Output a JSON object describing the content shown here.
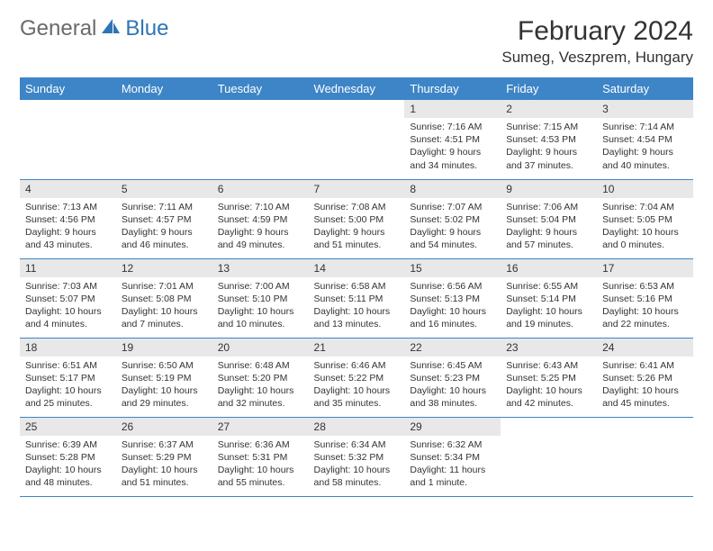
{
  "brand": {
    "part1": "General",
    "part2": "Blue"
  },
  "title": "February 2024",
  "location": "Sumeg, Veszprem, Hungary",
  "colors": {
    "header_bg": "#3d85c6",
    "header_text": "#ffffff",
    "daynum_bg": "#e8e8e8",
    "border": "#3d85c6",
    "logo_gray": "#6a6a6a",
    "logo_blue": "#2e75b6",
    "page_bg": "#ffffff"
  },
  "weekdays": [
    "Sunday",
    "Monday",
    "Tuesday",
    "Wednesday",
    "Thursday",
    "Friday",
    "Saturday"
  ],
  "weeks": [
    [
      null,
      null,
      null,
      null,
      {
        "n": "1",
        "sunrise": "Sunrise: 7:16 AM",
        "sunset": "Sunset: 4:51 PM",
        "daylight": "Daylight: 9 hours and 34 minutes."
      },
      {
        "n": "2",
        "sunrise": "Sunrise: 7:15 AM",
        "sunset": "Sunset: 4:53 PM",
        "daylight": "Daylight: 9 hours and 37 minutes."
      },
      {
        "n": "3",
        "sunrise": "Sunrise: 7:14 AM",
        "sunset": "Sunset: 4:54 PM",
        "daylight": "Daylight: 9 hours and 40 minutes."
      }
    ],
    [
      {
        "n": "4",
        "sunrise": "Sunrise: 7:13 AM",
        "sunset": "Sunset: 4:56 PM",
        "daylight": "Daylight: 9 hours and 43 minutes."
      },
      {
        "n": "5",
        "sunrise": "Sunrise: 7:11 AM",
        "sunset": "Sunset: 4:57 PM",
        "daylight": "Daylight: 9 hours and 46 minutes."
      },
      {
        "n": "6",
        "sunrise": "Sunrise: 7:10 AM",
        "sunset": "Sunset: 4:59 PM",
        "daylight": "Daylight: 9 hours and 49 minutes."
      },
      {
        "n": "7",
        "sunrise": "Sunrise: 7:08 AM",
        "sunset": "Sunset: 5:00 PM",
        "daylight": "Daylight: 9 hours and 51 minutes."
      },
      {
        "n": "8",
        "sunrise": "Sunrise: 7:07 AM",
        "sunset": "Sunset: 5:02 PM",
        "daylight": "Daylight: 9 hours and 54 minutes."
      },
      {
        "n": "9",
        "sunrise": "Sunrise: 7:06 AM",
        "sunset": "Sunset: 5:04 PM",
        "daylight": "Daylight: 9 hours and 57 minutes."
      },
      {
        "n": "10",
        "sunrise": "Sunrise: 7:04 AM",
        "sunset": "Sunset: 5:05 PM",
        "daylight": "Daylight: 10 hours and 0 minutes."
      }
    ],
    [
      {
        "n": "11",
        "sunrise": "Sunrise: 7:03 AM",
        "sunset": "Sunset: 5:07 PM",
        "daylight": "Daylight: 10 hours and 4 minutes."
      },
      {
        "n": "12",
        "sunrise": "Sunrise: 7:01 AM",
        "sunset": "Sunset: 5:08 PM",
        "daylight": "Daylight: 10 hours and 7 minutes."
      },
      {
        "n": "13",
        "sunrise": "Sunrise: 7:00 AM",
        "sunset": "Sunset: 5:10 PM",
        "daylight": "Daylight: 10 hours and 10 minutes."
      },
      {
        "n": "14",
        "sunrise": "Sunrise: 6:58 AM",
        "sunset": "Sunset: 5:11 PM",
        "daylight": "Daylight: 10 hours and 13 minutes."
      },
      {
        "n": "15",
        "sunrise": "Sunrise: 6:56 AM",
        "sunset": "Sunset: 5:13 PM",
        "daylight": "Daylight: 10 hours and 16 minutes."
      },
      {
        "n": "16",
        "sunrise": "Sunrise: 6:55 AM",
        "sunset": "Sunset: 5:14 PM",
        "daylight": "Daylight: 10 hours and 19 minutes."
      },
      {
        "n": "17",
        "sunrise": "Sunrise: 6:53 AM",
        "sunset": "Sunset: 5:16 PM",
        "daylight": "Daylight: 10 hours and 22 minutes."
      }
    ],
    [
      {
        "n": "18",
        "sunrise": "Sunrise: 6:51 AM",
        "sunset": "Sunset: 5:17 PM",
        "daylight": "Daylight: 10 hours and 25 minutes."
      },
      {
        "n": "19",
        "sunrise": "Sunrise: 6:50 AM",
        "sunset": "Sunset: 5:19 PM",
        "daylight": "Daylight: 10 hours and 29 minutes."
      },
      {
        "n": "20",
        "sunrise": "Sunrise: 6:48 AM",
        "sunset": "Sunset: 5:20 PM",
        "daylight": "Daylight: 10 hours and 32 minutes."
      },
      {
        "n": "21",
        "sunrise": "Sunrise: 6:46 AM",
        "sunset": "Sunset: 5:22 PM",
        "daylight": "Daylight: 10 hours and 35 minutes."
      },
      {
        "n": "22",
        "sunrise": "Sunrise: 6:45 AM",
        "sunset": "Sunset: 5:23 PM",
        "daylight": "Daylight: 10 hours and 38 minutes."
      },
      {
        "n": "23",
        "sunrise": "Sunrise: 6:43 AM",
        "sunset": "Sunset: 5:25 PM",
        "daylight": "Daylight: 10 hours and 42 minutes."
      },
      {
        "n": "24",
        "sunrise": "Sunrise: 6:41 AM",
        "sunset": "Sunset: 5:26 PM",
        "daylight": "Daylight: 10 hours and 45 minutes."
      }
    ],
    [
      {
        "n": "25",
        "sunrise": "Sunrise: 6:39 AM",
        "sunset": "Sunset: 5:28 PM",
        "daylight": "Daylight: 10 hours and 48 minutes."
      },
      {
        "n": "26",
        "sunrise": "Sunrise: 6:37 AM",
        "sunset": "Sunset: 5:29 PM",
        "daylight": "Daylight: 10 hours and 51 minutes."
      },
      {
        "n": "27",
        "sunrise": "Sunrise: 6:36 AM",
        "sunset": "Sunset: 5:31 PM",
        "daylight": "Daylight: 10 hours and 55 minutes."
      },
      {
        "n": "28",
        "sunrise": "Sunrise: 6:34 AM",
        "sunset": "Sunset: 5:32 PM",
        "daylight": "Daylight: 10 hours and 58 minutes."
      },
      {
        "n": "29",
        "sunrise": "Sunrise: 6:32 AM",
        "sunset": "Sunset: 5:34 PM",
        "daylight": "Daylight: 11 hours and 1 minute."
      },
      null,
      null
    ]
  ]
}
